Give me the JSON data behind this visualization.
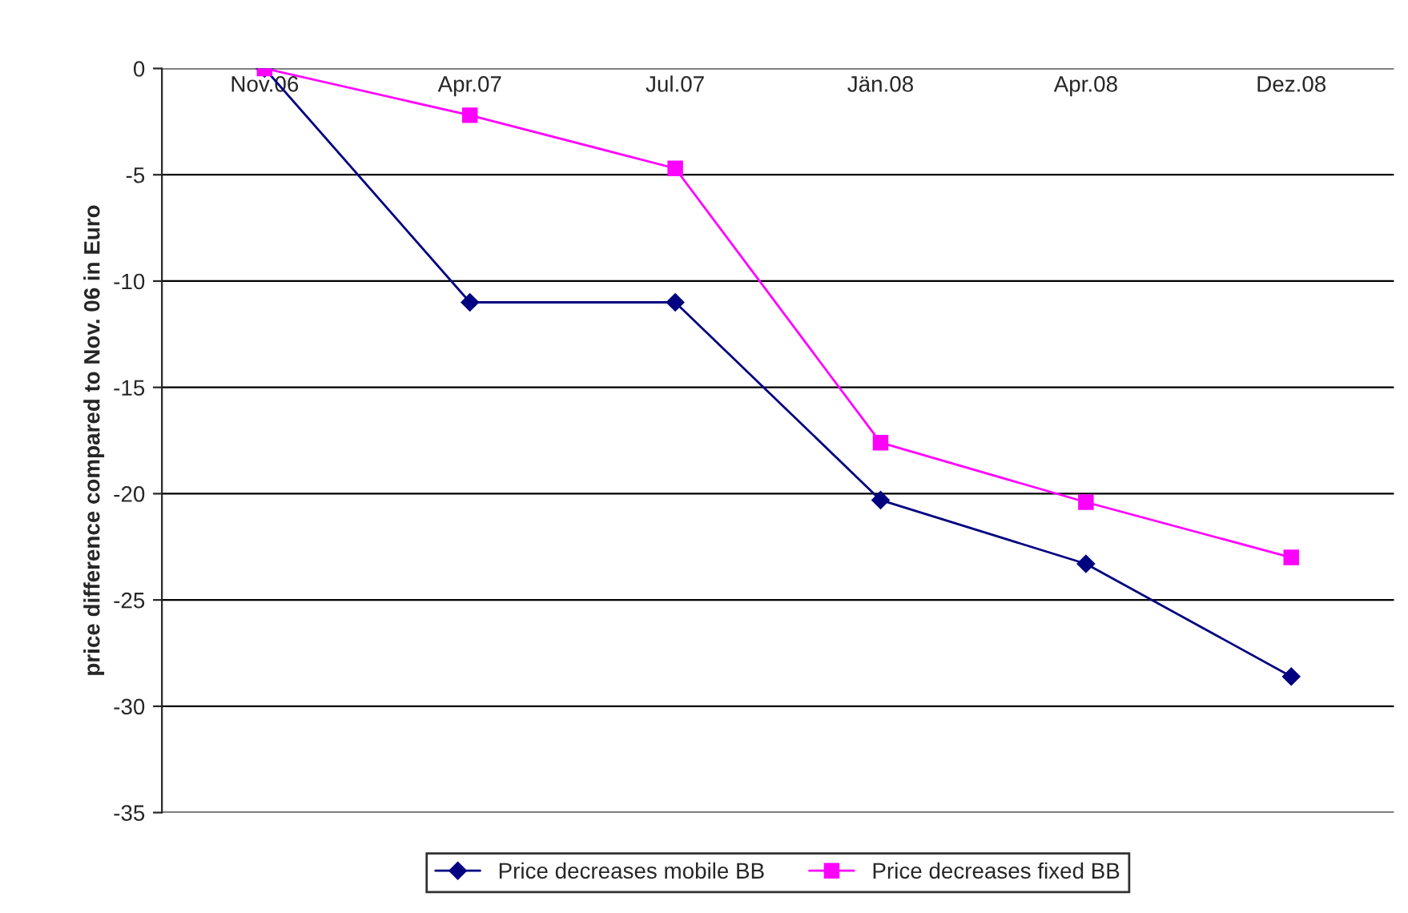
{
  "chart_data": {
    "type": "line",
    "ylabel": "price difference compared to Nov. 06 in Euro",
    "categories": [
      "Nov.06",
      "Apr.07",
      "Jul.07",
      "Jän.08",
      "Apr.08",
      "Dez.08"
    ],
    "series": [
      {
        "name": "Price decreases mobile BB",
        "color": "#000080",
        "marker": "diamond",
        "values": [
          0,
          -11.0,
          -11.0,
          -20.3,
          -23.3,
          -28.6
        ]
      },
      {
        "name": "Price decreases fixed BB",
        "color": "#ff00ff",
        "marker": "square",
        "values": [
          0,
          -2.2,
          -4.7,
          -17.6,
          -20.4,
          -23.0
        ]
      }
    ],
    "ylim": [
      -35,
      0
    ],
    "yticks": [
      -35,
      -30,
      -25,
      -20,
      -15,
      -10,
      -5,
      0
    ],
    "grid": "y",
    "legend": "bottom",
    "line_style": "solid"
  }
}
